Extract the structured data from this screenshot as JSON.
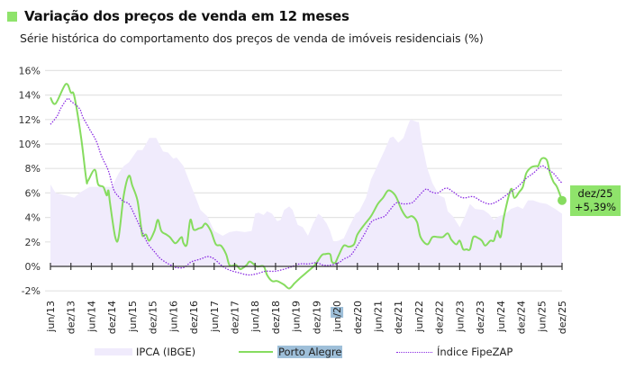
{
  "header": {
    "title": "Variação dos preços de venda em 12 meses",
    "subtitle": "Série histórica do comportamento dos preços de venda de imóveis residenciais (%)",
    "accent_color": "#8fe36b"
  },
  "end_label": {
    "date": "dez/25",
    "value": "+5,39%",
    "bg_color": "#8fe36b"
  },
  "legend": [
    {
      "label": "IPCA (IBGE)",
      "type": "area",
      "color": "#f0ebfc"
    },
    {
      "label": "Porto Alegre",
      "type": "line",
      "color": "#86dc5f"
    },
    {
      "label": "Índice FipeZAP",
      "type": "dotted",
      "color": "#8a2be2"
    }
  ],
  "chart_data": {
    "type": "line",
    "title": "Variação dos preços de venda em 12 meses",
    "subtitle": "Série histórica do comportamento dos preços de venda de imóveis residenciais (%)",
    "xlabel": "",
    "ylabel": "",
    "x_unit": "months since jun/13",
    "xlim": [
      0,
      150
    ],
    "ylim": [
      -2,
      16
    ],
    "yticks": [
      -2,
      0,
      2,
      4,
      6,
      8,
      10,
      12,
      14,
      16
    ],
    "ytick_labels": [
      "-2%",
      "0%",
      "2%",
      "4%",
      "6%",
      "8%",
      "10%",
      "12%",
      "14%",
      "16%"
    ],
    "xtick_labels": [
      "jun/13",
      "dez/13",
      "jun/14",
      "dez/14",
      "jun/15",
      "dez/15",
      "jun/16",
      "dez/16",
      "jun/17",
      "dez/17",
      "jun/18",
      "dez/18",
      "jun/19",
      "dez/19",
      "jun/20",
      "dez/20",
      "jun/21",
      "dez/21",
      "jun/22",
      "dez/22",
      "jun/23",
      "dez/23",
      "jun/24",
      "dez/24",
      "jun/25",
      "dez/25"
    ],
    "highlighted_xtick": "jun/20",
    "grid": true,
    "legend_position": "bottom",
    "series": [
      {
        "name": "IPCA (IBGE)",
        "type": "area",
        "points": [
          [
            0,
            6.7
          ],
          [
            1.5,
            6.0
          ],
          [
            4.5,
            5.8
          ],
          [
            7,
            5.6
          ],
          [
            8.5,
            6.0
          ],
          [
            11.5,
            6.5
          ],
          [
            15,
            6.5
          ],
          [
            18,
            6.5
          ],
          [
            20,
            7.6
          ],
          [
            21.5,
            8.2
          ],
          [
            23,
            8.5
          ],
          [
            25.5,
            9.5
          ],
          [
            27,
            9.5
          ],
          [
            29,
            10.5
          ],
          [
            31,
            10.5
          ],
          [
            33,
            9.4
          ],
          [
            34.5,
            9.3
          ],
          [
            36,
            8.8
          ],
          [
            37,
            8.9
          ],
          [
            39,
            8.2
          ],
          [
            40.5,
            7.1
          ],
          [
            42.5,
            5.7
          ],
          [
            44,
            4.6
          ],
          [
            46,
            4.1
          ],
          [
            48,
            2.9
          ],
          [
            50.5,
            2.5
          ],
          [
            52.5,
            2.8
          ],
          [
            54.5,
            2.9
          ],
          [
            57,
            2.8
          ],
          [
            59,
            2.9
          ],
          [
            60,
            4.3
          ],
          [
            61,
            4.4
          ],
          [
            62.5,
            4.2
          ],
          [
            63.5,
            4.5
          ],
          [
            65,
            4.3
          ],
          [
            66.5,
            3.7
          ],
          [
            67.5,
            3.8
          ],
          [
            68.5,
            4.6
          ],
          [
            70,
            4.9
          ],
          [
            71,
            4.6
          ],
          [
            72.5,
            3.4
          ],
          [
            74,
            3.2
          ],
          [
            75.5,
            2.5
          ],
          [
            77,
            3.5
          ],
          [
            78.5,
            4.3
          ],
          [
            79.5,
            4.1
          ],
          [
            81,
            3.5
          ],
          [
            82,
            2.9
          ],
          [
            83,
            2.0
          ],
          [
            84.5,
            2.1
          ],
          [
            86,
            2.3
          ],
          [
            87.5,
            3.2
          ],
          [
            89.5,
            4.3
          ],
          [
            90.5,
            4.5
          ],
          [
            92.5,
            5.6
          ],
          [
            94,
            7.1
          ],
          [
            96,
            8.3
          ],
          [
            98,
            9.5
          ],
          [
            99.5,
            10.5
          ],
          [
            100.5,
            10.6
          ],
          [
            102,
            10.1
          ],
          [
            103.5,
            10.5
          ],
          [
            104.5,
            11.3
          ],
          [
            105.5,
            12.0
          ],
          [
            107.5,
            11.8
          ],
          [
            108,
            11.8
          ],
          [
            109,
            10.0
          ],
          [
            110.5,
            8.0
          ],
          [
            112,
            6.8
          ],
          [
            114,
            5.8
          ],
          [
            115.5,
            5.6
          ],
          [
            116.5,
            4.5
          ],
          [
            118,
            4.1
          ],
          [
            120,
            3.2
          ],
          [
            121.5,
            4.1
          ],
          [
            123,
            5.1
          ],
          [
            124.5,
            4.7
          ],
          [
            127,
            4.6
          ],
          [
            128.5,
            4.3
          ],
          [
            130,
            3.8
          ],
          [
            131.5,
            4.1
          ],
          [
            133.5,
            4.3
          ],
          [
            135,
            4.7
          ],
          [
            137,
            4.9
          ],
          [
            138.5,
            4.7
          ],
          [
            140,
            5.4
          ],
          [
            141.5,
            5.4
          ],
          [
            143.5,
            5.2
          ],
          [
            145.5,
            5.1
          ],
          [
            148,
            4.7
          ],
          [
            150,
            4.3
          ]
        ]
      },
      {
        "name": "Porto Alegre",
        "type": "line",
        "points": [
          [
            0,
            13.8
          ],
          [
            1.5,
            13.3
          ],
          [
            4.5,
            14.9
          ],
          [
            6,
            14.2
          ],
          [
            7,
            13.9
          ],
          [
            9,
            10.5
          ],
          [
            10.5,
            7.1
          ],
          [
            11,
            7.0
          ],
          [
            13,
            7.9
          ],
          [
            14,
            6.7
          ],
          [
            15.5,
            6.5
          ],
          [
            16.5,
            5.8
          ],
          [
            17,
            6.2
          ],
          [
            17.5,
            5.1
          ],
          [
            19,
            2.4
          ],
          [
            20,
            2.4
          ],
          [
            21.5,
            5.8
          ],
          [
            23,
            7.4
          ],
          [
            24,
            6.6
          ],
          [
            25.5,
            5.4
          ],
          [
            26.5,
            3.4
          ],
          [
            27,
            2.5
          ],
          [
            28,
            2.6
          ],
          [
            29,
            2.1
          ],
          [
            30.5,
            2.9
          ],
          [
            31.5,
            3.8
          ],
          [
            32.5,
            2.9
          ],
          [
            34,
            2.6
          ],
          [
            35,
            2.4
          ],
          [
            36.5,
            1.9
          ],
          [
            37.5,
            2.1
          ],
          [
            38.5,
            2.4
          ],
          [
            37.5,
            2.1
          ],
          [
            40,
            1.8
          ],
          [
            39,
            1.9
          ],
          [
            41,
            3.8
          ],
          [
            42,
            3.0
          ],
          [
            43.5,
            3.1
          ],
          [
            44.5,
            3.2
          ],
          [
            45.5,
            3.5
          ],
          [
            47,
            2.9
          ],
          [
            48.5,
            1.8
          ],
          [
            50,
            1.7
          ],
          [
            51.5,
            1.0
          ],
          [
            52.5,
            0.1
          ],
          [
            54,
            0.1
          ],
          [
            55.5,
            -0.2
          ],
          [
            54.5,
            0.1
          ],
          [
            56,
            -0.2
          ],
          [
            57.5,
            0.1
          ],
          [
            58.5,
            0.4
          ],
          [
            60.5,
            0.0
          ],
          [
            62.5,
            0.0
          ],
          [
            63.5,
            -0.7
          ],
          [
            65,
            -1.2
          ],
          [
            66.5,
            -1.2
          ],
          [
            68.5,
            -1.5
          ],
          [
            70,
            -1.8
          ],
          [
            71.5,
            -1.4
          ],
          [
            73,
            -1.0
          ],
          [
            75.5,
            -0.4
          ],
          [
            77.5,
            0.1
          ],
          [
            79.5,
            0.9
          ],
          [
            80.5,
            1.0
          ],
          [
            82,
            1.0
          ],
          [
            82.5,
            0.4
          ],
          [
            83.5,
            0.3
          ],
          [
            84.5,
            0.9
          ],
          [
            86,
            1.7
          ],
          [
            87.5,
            1.6
          ],
          [
            89,
            1.8
          ],
          [
            90,
            2.6
          ],
          [
            92,
            3.4
          ],
          [
            94,
            4.1
          ],
          [
            96,
            5.1
          ],
          [
            97.5,
            5.6
          ],
          [
            99,
            6.2
          ],
          [
            100.5,
            6.0
          ],
          [
            101.5,
            5.6
          ],
          [
            103,
            4.6
          ],
          [
            104.5,
            4.0
          ],
          [
            106,
            4.1
          ],
          [
            107.5,
            3.6
          ],
          [
            108.5,
            2.4
          ],
          [
            110.5,
            1.8
          ],
          [
            112,
            2.4
          ],
          [
            113.5,
            2.4
          ],
          [
            115,
            2.4
          ],
          [
            116.5,
            2.7
          ],
          [
            117.5,
            2.2
          ],
          [
            119,
            1.8
          ],
          [
            120,
            2.1
          ],
          [
            121,
            1.4
          ],
          [
            122,
            1.4
          ],
          [
            123,
            1.4
          ],
          [
            124,
            2.4
          ],
          [
            125.5,
            2.3
          ],
          [
            126.5,
            2.1
          ],
          [
            127.5,
            1.7
          ],
          [
            129,
            2.1
          ],
          [
            130,
            2.1
          ],
          [
            131,
            2.9
          ],
          [
            132,
            2.4
          ],
          [
            133,
            4.1
          ],
          [
            135,
            6.3
          ],
          [
            136,
            5.6
          ],
          [
            137.5,
            6.1
          ],
          [
            138.5,
            6.5
          ],
          [
            139.5,
            7.6
          ],
          [
            141,
            8.1
          ],
          [
            142.5,
            8.2
          ],
          [
            143,
            8.2
          ],
          [
            144,
            8.8
          ],
          [
            145.5,
            8.7
          ],
          [
            146.5,
            7.6
          ],
          [
            147.5,
            6.9
          ],
          [
            148.5,
            6.5
          ],
          [
            150,
            5.39
          ]
        ]
      },
      {
        "name": "Índice FipeZAP",
        "type": "dotted",
        "points": [
          [
            0,
            11.6
          ],
          [
            2,
            12.3
          ],
          [
            3,
            12.9
          ],
          [
            5,
            13.7
          ],
          [
            6,
            13.5
          ],
          [
            8.5,
            12.9
          ],
          [
            9.5,
            12.2
          ],
          [
            11.5,
            11.2
          ],
          [
            13.5,
            10.2
          ],
          [
            15,
            9.0
          ],
          [
            17,
            7.8
          ],
          [
            18.5,
            6.3
          ],
          [
            20,
            5.7
          ],
          [
            21.5,
            5.3
          ],
          [
            23,
            5.1
          ],
          [
            24.5,
            4.3
          ],
          [
            26.5,
            3.1
          ],
          [
            28.5,
            1.9
          ],
          [
            30.5,
            1.2
          ],
          [
            32,
            0.7
          ],
          [
            34,
            0.3
          ],
          [
            36,
            0.0
          ],
          [
            37,
            -0.1
          ],
          [
            39,
            -0.1
          ],
          [
            40.5,
            0.2
          ],
          [
            41.5,
            0.4
          ],
          [
            44,
            0.6
          ],
          [
            46,
            0.8
          ],
          [
            47.5,
            0.7
          ],
          [
            48.5,
            0.5
          ],
          [
            50.5,
            0.0
          ],
          [
            52.5,
            -0.3
          ],
          [
            55,
            -0.5
          ],
          [
            58,
            -0.7
          ],
          [
            60.5,
            -0.6
          ],
          [
            63,
            -0.4
          ],
          [
            65.5,
            -0.4
          ],
          [
            67.5,
            -0.3
          ],
          [
            70,
            -0.1
          ],
          [
            73,
            0.2
          ],
          [
            75.5,
            0.2
          ],
          [
            78,
            0.3
          ],
          [
            80,
            0.1
          ],
          [
            82,
            0.1
          ],
          [
            84.5,
            0.3
          ],
          [
            86,
            0.6
          ],
          [
            88,
            0.9
          ],
          [
            90,
            1.7
          ],
          [
            92,
            2.6
          ],
          [
            94,
            3.6
          ],
          [
            96,
            3.9
          ],
          [
            98,
            4.1
          ],
          [
            99.5,
            4.6
          ],
          [
            101.5,
            5.2
          ],
          [
            103.5,
            5.1
          ],
          [
            106,
            5.2
          ],
          [
            107.5,
            5.6
          ],
          [
            110,
            6.3
          ],
          [
            111.5,
            6.1
          ],
          [
            113.5,
            6.0
          ],
          [
            116,
            6.4
          ],
          [
            118,
            6.1
          ],
          [
            120,
            5.7
          ],
          [
            121.5,
            5.6
          ],
          [
            124,
            5.7
          ],
          [
            126.5,
            5.3
          ],
          [
            129,
            5.1
          ],
          [
            131.5,
            5.4
          ],
          [
            134.5,
            6.0
          ],
          [
            137,
            6.5
          ],
          [
            139.5,
            7.2
          ],
          [
            141.5,
            7.6
          ],
          [
            144,
            8.2
          ],
          [
            145.5,
            8.0
          ],
          [
            147.5,
            7.6
          ],
          [
            149,
            7.1
          ],
          [
            150,
            6.8
          ]
        ]
      }
    ],
    "annotations": [
      {
        "text": "dez/25 +5,39%",
        "series": "Porto Alegre",
        "x_label": "dez/25",
        "value": 5.39
      }
    ]
  }
}
